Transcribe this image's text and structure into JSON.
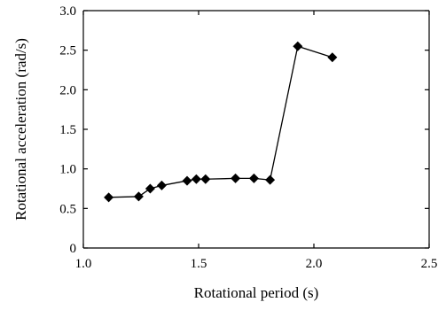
{
  "chart_data": {
    "type": "line",
    "title": "",
    "xlabel": "Rotational period (s)",
    "ylabel": "Rotational acceleration (rad/s)",
    "xlim": [
      1.0,
      2.5
    ],
    "ylim": [
      0,
      3.0
    ],
    "xticks": [
      "1.0",
      "1.5",
      "2.0",
      "2.5"
    ],
    "yticks": [
      "0",
      "0.5",
      "1.0",
      "1.5",
      "2.0",
      "2.5",
      "3.0"
    ],
    "grid": false,
    "marker": "diamond",
    "series": [
      {
        "x": [
          1.11,
          1.24,
          1.29,
          1.34,
          1.45,
          1.49,
          1.53,
          1.66,
          1.74,
          1.81,
          1.93,
          2.08
        ],
        "y": [
          0.64,
          0.65,
          0.75,
          0.79,
          0.85,
          0.87,
          0.87,
          0.88,
          0.88,
          0.86,
          2.55,
          2.41
        ]
      }
    ]
  }
}
